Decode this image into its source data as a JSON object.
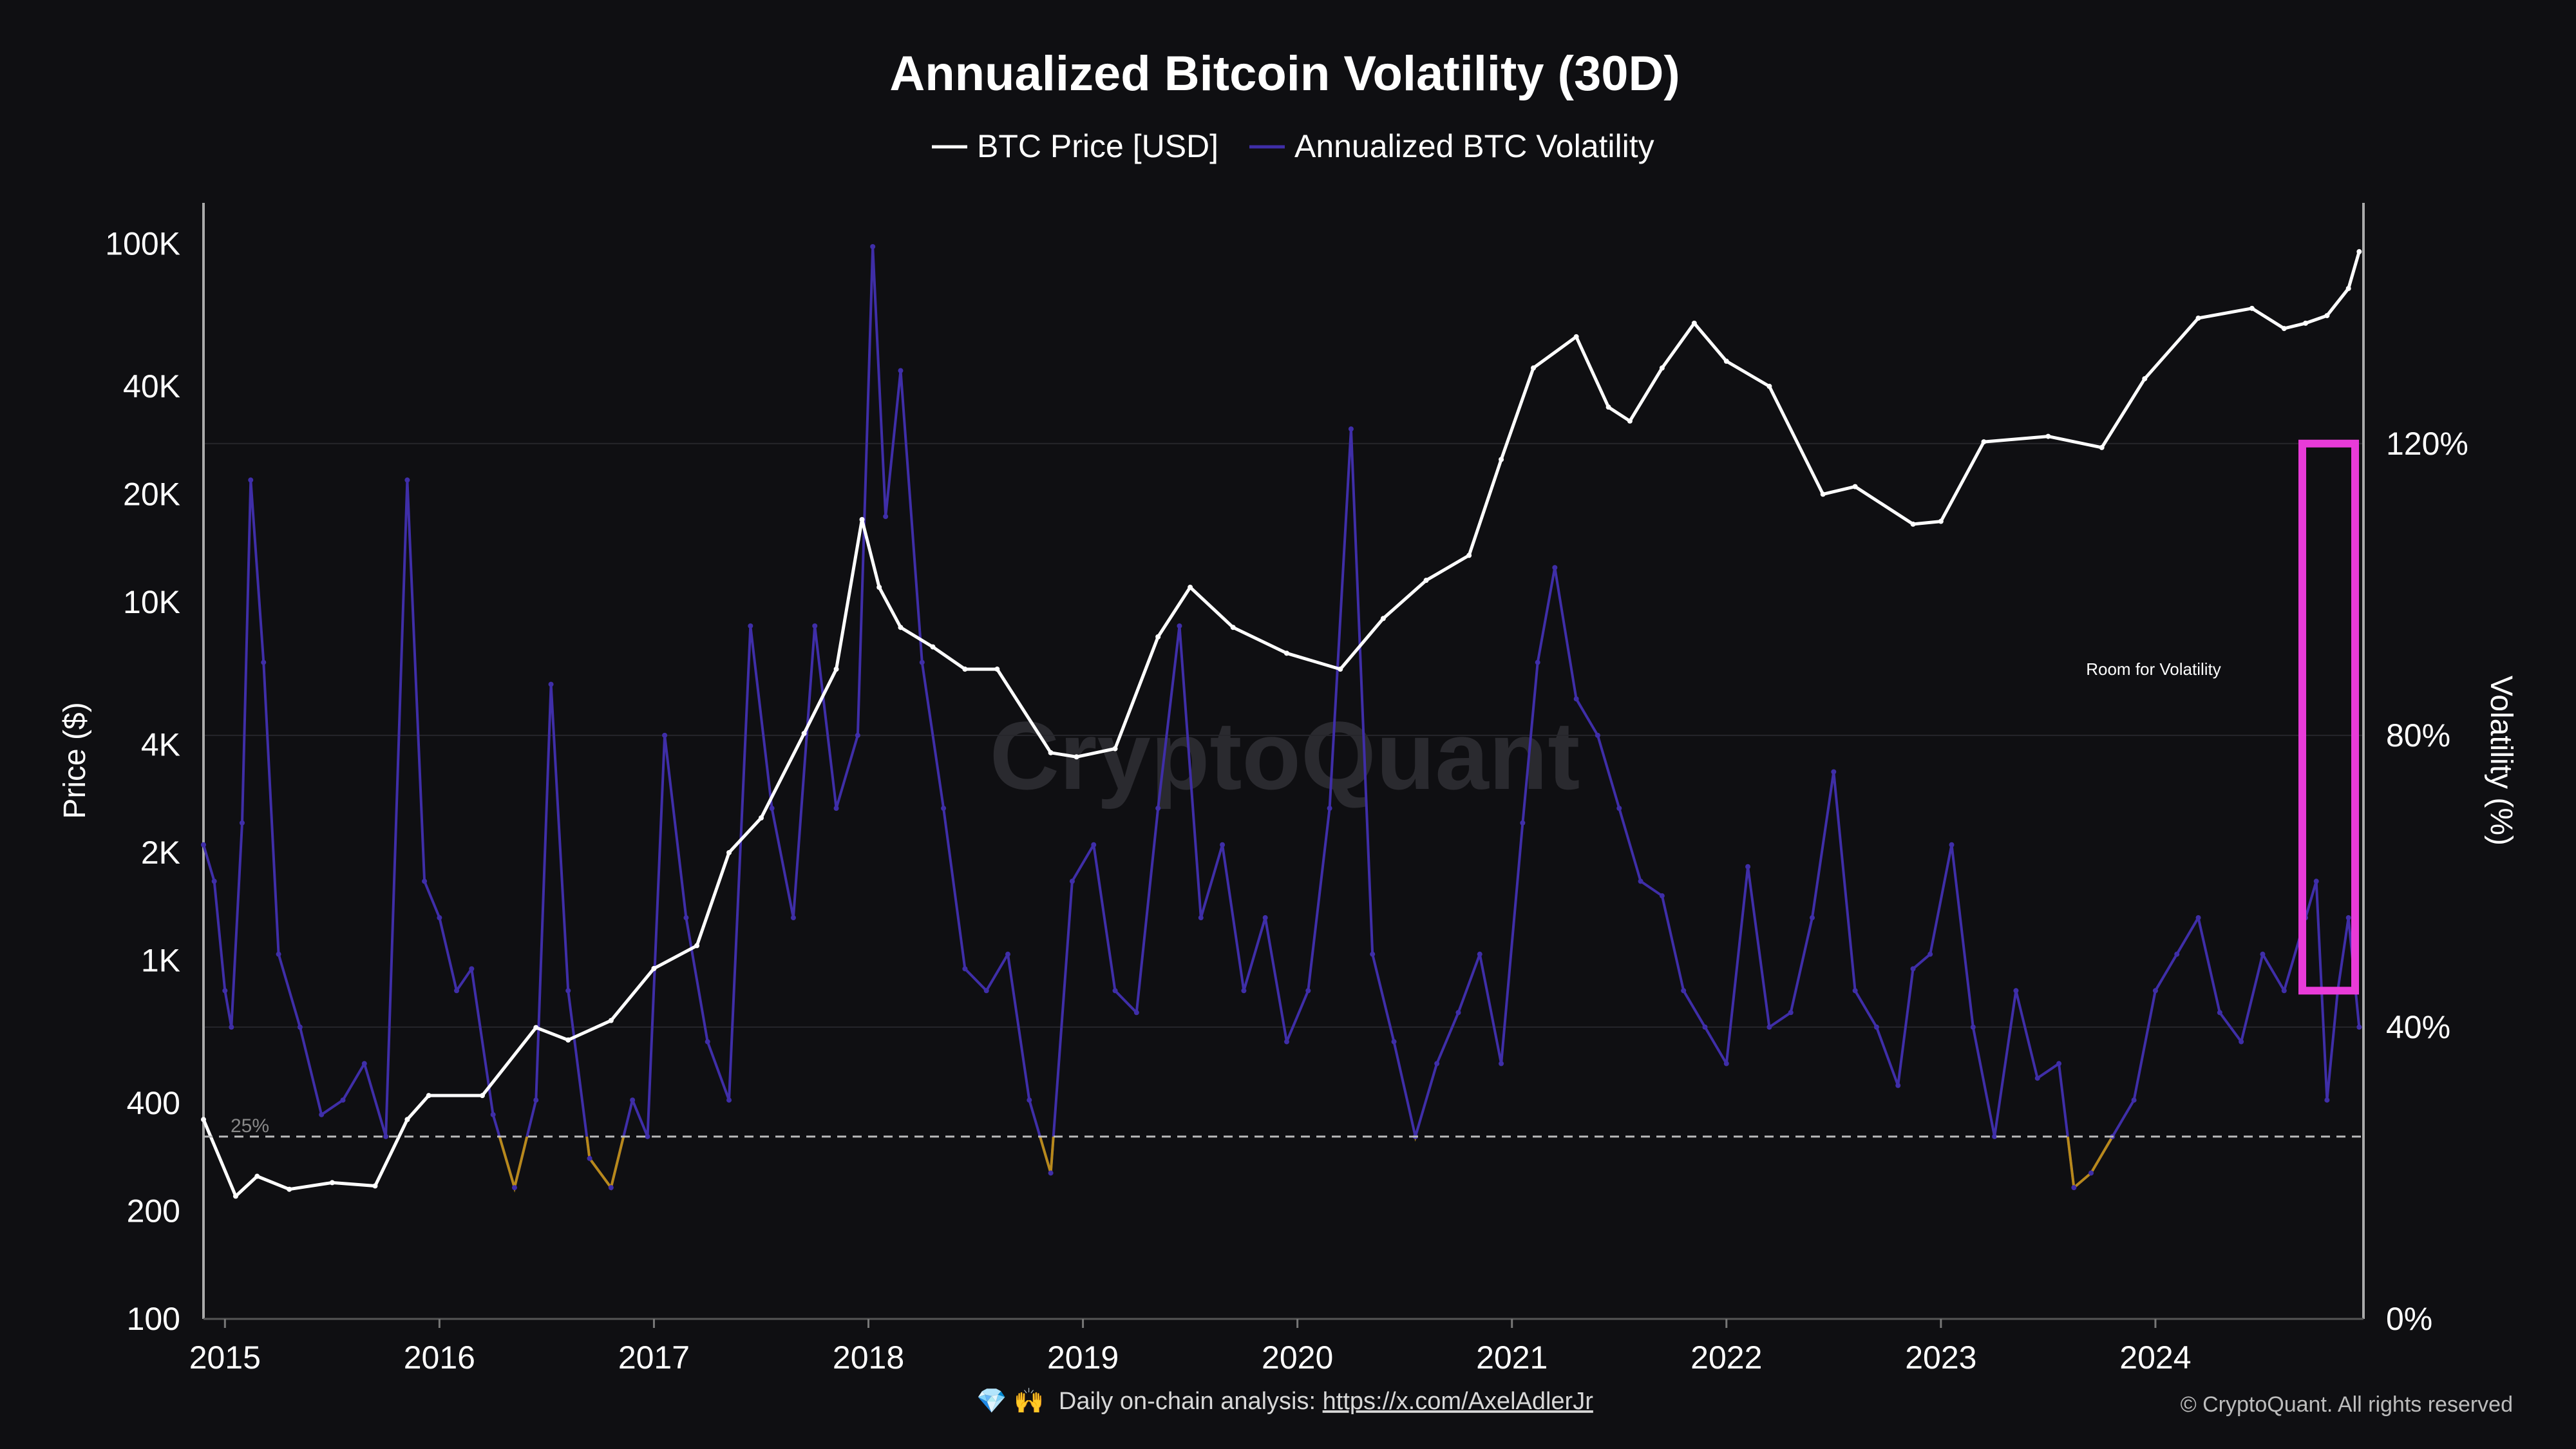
{
  "chart_data": {
    "type": "line",
    "title": "Annualized Bitcoin Volatility (30D)",
    "legend": {
      "placement": "top-center",
      "entries": [
        {
          "name": "BTC Price [USD]",
          "color": "#ffffff"
        },
        {
          "name": "Annualized BTC Volatility",
          "color": "#3f2ea8"
        }
      ]
    },
    "y_left": {
      "label": "Price ($)",
      "scale": "log",
      "range": [
        100,
        130000
      ],
      "ticks": [
        100,
        200,
        400,
        1000,
        2000,
        4000,
        10000,
        20000,
        40000,
        100000
      ],
      "tick_labels": [
        "100",
        "200",
        "400",
        "1K",
        "2K",
        "4K",
        "10K",
        "20K",
        "40K",
        "100K"
      ]
    },
    "y_right": {
      "label": "Volatility (%)",
      "range": [
        0,
        153
      ],
      "ticks": [
        0,
        40,
        80,
        120
      ],
      "tick_labels": [
        "0%",
        "40%",
        "80%",
        "120%"
      ]
    },
    "x": {
      "range": [
        2014.9,
        2024.97
      ],
      "ticks": [
        2015,
        2016,
        2017,
        2018,
        2019,
        2020,
        2021,
        2022,
        2023,
        2024
      ],
      "tick_labels": [
        "2015",
        "2016",
        "2017",
        "2018",
        "2019",
        "2020",
        "2021",
        "2022",
        "2023",
        "2024"
      ]
    },
    "grid": "horizontal",
    "threshold": {
      "value": 25,
      "label": "25%",
      "low_color": "#b8891a"
    },
    "series": [
      {
        "name": "BTC Price [USD]",
        "axis": "left",
        "color": "#ffffff",
        "x": [
          2014.9,
          2015.05,
          2015.15,
          2015.3,
          2015.5,
          2015.7,
          2015.85,
          2015.95,
          2016.2,
          2016.45,
          2016.6,
          2016.8,
          2017.0,
          2017.2,
          2017.35,
          2017.5,
          2017.7,
          2017.85,
          2017.97,
          2018.05,
          2018.15,
          2018.3,
          2018.45,
          2018.6,
          2018.85,
          2018.97,
          2019.15,
          2019.35,
          2019.5,
          2019.7,
          2019.95,
          2020.2,
          2020.4,
          2020.6,
          2020.8,
          2020.95,
          2021.1,
          2021.3,
          2021.45,
          2021.55,
          2021.7,
          2021.85,
          2022.0,
          2022.2,
          2022.45,
          2022.6,
          2022.87,
          2023.0,
          2023.2,
          2023.5,
          2023.75,
          2023.95,
          2024.2,
          2024.45,
          2024.6,
          2024.7,
          2024.8,
          2024.9,
          2024.95
        ],
        "y": [
          360,
          220,
          250,
          230,
          240,
          235,
          360,
          420,
          420,
          650,
          600,
          680,
          950,
          1100,
          2000,
          2500,
          4300,
          6500,
          17000,
          11000,
          8500,
          7500,
          6500,
          6500,
          3800,
          3700,
          3900,
          8000,
          11000,
          8500,
          7200,
          6500,
          9000,
          11500,
          13500,
          25000,
          45000,
          55000,
          35000,
          32000,
          45000,
          60000,
          47000,
          40000,
          20000,
          21000,
          16500,
          16800,
          28000,
          29000,
          27000,
          42000,
          62000,
          66000,
          58000,
          60000,
          63000,
          75000,
          95000
        ]
      },
      {
        "name": "Annualized BTC Volatility",
        "axis": "right",
        "color": "#3f2ea8",
        "x": [
          2014.9,
          2014.95,
          2015.0,
          2015.03,
          2015.08,
          2015.12,
          2015.18,
          2015.25,
          2015.35,
          2015.45,
          2015.55,
          2015.65,
          2015.75,
          2015.85,
          2015.93,
          2016.0,
          2016.08,
          2016.15,
          2016.25,
          2016.35,
          2016.45,
          2016.52,
          2016.6,
          2016.7,
          2016.8,
          2016.9,
          2016.97,
          2017.05,
          2017.15,
          2017.25,
          2017.35,
          2017.45,
          2017.55,
          2017.65,
          2017.75,
          2017.85,
          2017.95,
          2018.02,
          2018.08,
          2018.15,
          2018.25,
          2018.35,
          2018.45,
          2018.55,
          2018.65,
          2018.75,
          2018.85,
          2018.95,
          2019.05,
          2019.15,
          2019.25,
          2019.35,
          2019.45,
          2019.55,
          2019.65,
          2019.75,
          2019.85,
          2019.95,
          2020.05,
          2020.15,
          2020.25,
          2020.35,
          2020.45,
          2020.55,
          2020.65,
          2020.75,
          2020.85,
          2020.95,
          2021.05,
          2021.12,
          2021.2,
          2021.3,
          2021.4,
          2021.5,
          2021.6,
          2021.7,
          2021.8,
          2021.9,
          2022.0,
          2022.1,
          2022.2,
          2022.3,
          2022.4,
          2022.5,
          2022.6,
          2022.7,
          2022.8,
          2022.87,
          2022.95,
          2023.05,
          2023.15,
          2023.25,
          2023.35,
          2023.45,
          2023.55,
          2023.62,
          2023.7,
          2023.8,
          2023.9,
          2024.0,
          2024.1,
          2024.2,
          2024.3,
          2024.4,
          2024.5,
          2024.6,
          2024.7,
          2024.75,
          2024.8,
          2024.85,
          2024.9,
          2024.95
        ],
        "y": [
          65,
          60,
          45,
          40,
          68,
          115,
          90,
          50,
          40,
          28,
          30,
          35,
          25,
          115,
          60,
          55,
          45,
          48,
          28,
          18,
          30,
          87,
          45,
          22,
          18,
          30,
          25,
          80,
          55,
          38,
          30,
          95,
          70,
          55,
          95,
          70,
          80,
          147,
          110,
          130,
          90,
          70,
          48,
          45,
          50,
          30,
          20,
          60,
          65,
          45,
          42,
          70,
          95,
          55,
          65,
          45,
          55,
          38,
          45,
          70,
          122,
          50,
          38,
          25,
          35,
          42,
          50,
          35,
          68,
          90,
          103,
          85,
          80,
          70,
          60,
          58,
          45,
          40,
          35,
          62,
          40,
          42,
          55,
          75,
          45,
          40,
          32,
          48,
          50,
          65,
          40,
          25,
          45,
          33,
          35,
          18,
          20,
          25,
          30,
          45,
          50,
          55,
          42,
          38,
          50,
          45,
          55,
          60,
          30,
          45,
          55,
          40
        ]
      }
    ],
    "annotation": {
      "text": "Room for Volatility",
      "box_color": "#e83bd8",
      "y_range": [
        45,
        120
      ]
    }
  },
  "watermark": "CryptoQuant",
  "footer": {
    "emoji": "💎 🙌",
    "text": "Daily on-chain analysis: ",
    "link": "https://x.com/AxelAdlerJr"
  },
  "copyright": "© CryptoQuant. All rights reserved"
}
